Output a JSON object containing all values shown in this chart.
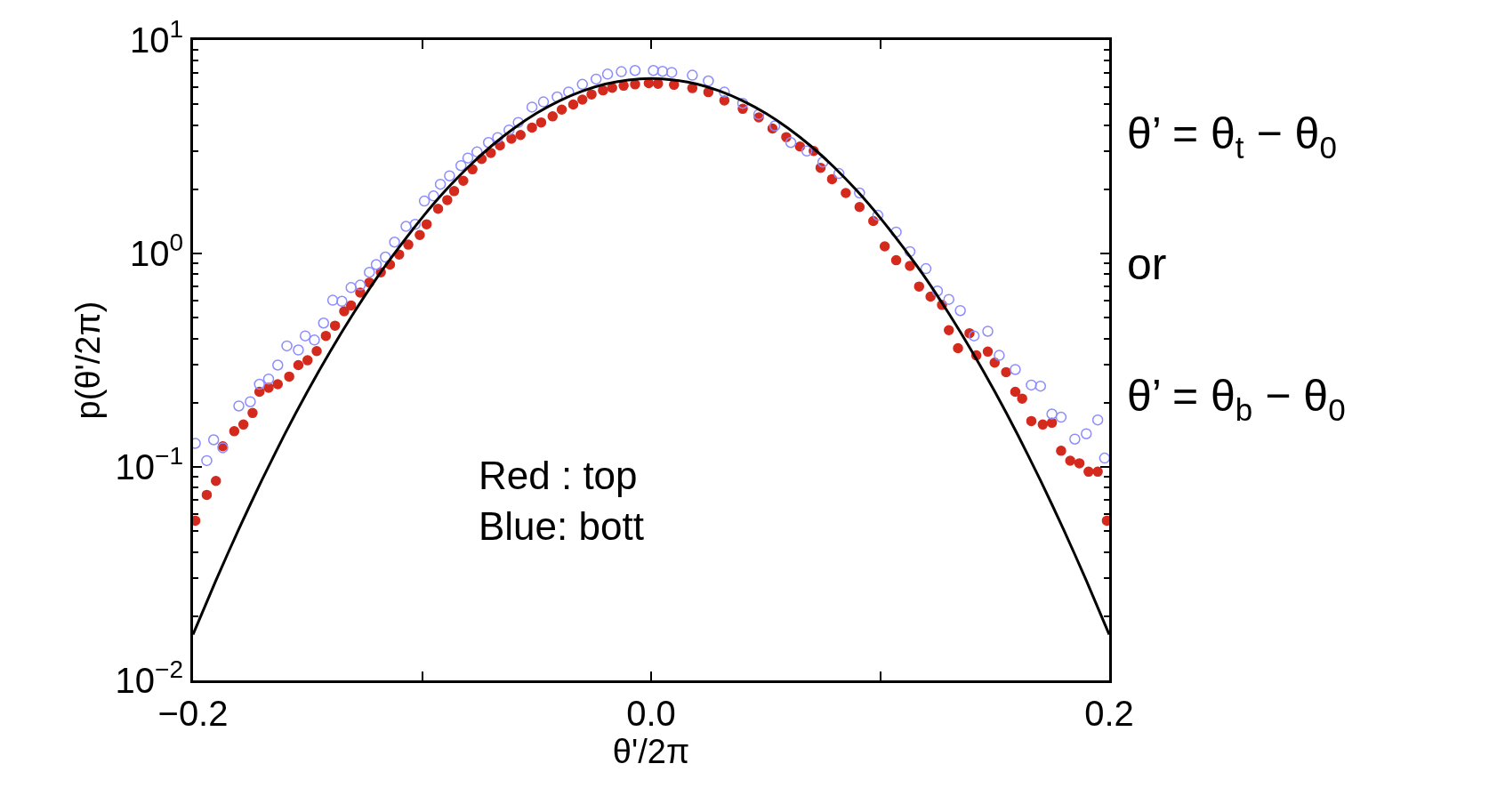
{
  "chart_data": {
    "type": "scatter",
    "xlabel": "θ'/2π",
    "ylabel": "p(θ'/2π)",
    "xlim": [
      -0.2,
      0.2
    ],
    "xticks": [
      {
        "value": -0.2,
        "label": "−0.2"
      },
      {
        "value": -0.1,
        "label": null
      },
      {
        "value": 0,
        "label": "0.0"
      },
      {
        "value": 0.1,
        "label": null
      },
      {
        "value": 0.2,
        "label": "0.2"
      }
    ],
    "ylim": [
      0.01,
      10
    ],
    "log": true,
    "yticks": [
      {
        "value": 0.01,
        "label": "10$^{−2}$"
      },
      {
        "value": 0.1,
        "label": "10$^{−1}$"
      },
      {
        "value": 1,
        "label": "10$^{0}$"
      },
      {
        "value": 10,
        "label": "10$^{1}$"
      }
    ],
    "annotations": [
      "Red : top\nBlue: bott",
      "θ’ = θ$_{t}$ − θ$_{0}$",
      "or",
      "θ’ = θ$_{b}$ − θ$_{0}$"
    ],
    "series": [
      {
        "marker": "circle",
        "color": "#d42a1e",
        "x": [
          -0.199,
          -0.194,
          -0.19,
          -0.187,
          -0.182,
          -0.178,
          -0.174,
          -0.171,
          -0.167,
          -0.163,
          -0.158,
          -0.154,
          -0.15,
          -0.146,
          -0.142,
          -0.138,
          -0.134,
          -0.131,
          -0.127,
          -0.123,
          -0.118,
          -0.114,
          -0.11,
          -0.106,
          -0.101,
          -0.098,
          -0.093,
          -0.089,
          -0.086,
          -0.082,
          -0.078,
          -0.074,
          -0.07,
          -0.066,
          -0.061,
          -0.057,
          -0.052,
          -0.048,
          -0.043,
          -0.039,
          -0.034,
          -0.03,
          -0.026,
          -0.021,
          -0.017,
          -0.012,
          -0.007,
          -0.001,
          0.003,
          0.01,
          0.018,
          0.025,
          0.032,
          0.04,
          0.047,
          0.053,
          0.059,
          0.065,
          0.071,
          0.074,
          0.079,
          0.085,
          0.091,
          0.097,
          0.102,
          0.107,
          0.113,
          0.117,
          0.122,
          0.127,
          0.13,
          0.134,
          0.139,
          0.142,
          0.147,
          0.15,
          0.155,
          0.159,
          0.162,
          0.166,
          0.171,
          0.175,
          0.179,
          0.183,
          0.187,
          0.191,
          0.195,
          0.199
        ],
        "values": [
          0.056,
          0.074,
          0.086,
          0.125,
          0.147,
          0.158,
          0.179,
          0.225,
          0.235,
          0.244,
          0.265,
          0.3,
          0.316,
          0.349,
          0.411,
          0.459,
          0.536,
          0.571,
          0.656,
          0.731,
          0.816,
          0.887,
          0.989,
          1.1,
          1.22,
          1.37,
          1.62,
          1.78,
          1.96,
          2.19,
          2.48,
          2.77,
          2.96,
          3.21,
          3.45,
          3.59,
          3.89,
          4.11,
          4.39,
          4.72,
          4.99,
          5.26,
          5.56,
          5.81,
          5.97,
          6.11,
          6.2,
          6.28,
          6.24,
          6.17,
          5.95,
          5.7,
          5.21,
          4.76,
          4.34,
          3.85,
          3.51,
          3.17,
          3.02,
          2.52,
          2.23,
          1.92,
          1.65,
          1.42,
          1.08,
          0.93,
          0.875,
          0.7,
          0.628,
          0.574,
          0.437,
          0.36,
          0.423,
          0.333,
          0.347,
          0.308,
          0.278,
          0.225,
          0.209,
          0.164,
          0.158,
          0.161,
          0.119,
          0.107,
          0.104,
          0.095,
          0.095,
          0.056
        ]
      },
      {
        "marker": "circle-open",
        "color": "#8c8cff",
        "x": [
          -0.199,
          -0.194,
          -0.191,
          -0.187,
          -0.18,
          -0.175,
          -0.171,
          -0.167,
          -0.163,
          -0.159,
          -0.154,
          -0.151,
          -0.147,
          -0.143,
          -0.139,
          -0.135,
          -0.131,
          -0.127,
          -0.123,
          -0.12,
          -0.116,
          -0.112,
          -0.107,
          -0.103,
          -0.099,
          -0.095,
          -0.092,
          -0.088,
          -0.083,
          -0.08,
          -0.076,
          -0.071,
          -0.067,
          -0.062,
          -0.058,
          -0.052,
          -0.047,
          -0.041,
          -0.036,
          -0.03,
          -0.024,
          -0.019,
          -0.013,
          -0.007,
          0.001,
          0.005,
          0.009,
          0.018,
          0.025,
          0.032,
          0.04,
          0.047,
          0.054,
          0.061,
          0.068,
          0.075,
          0.082,
          0.091,
          0.099,
          0.107,
          0.113,
          0.12,
          0.125,
          0.13,
          0.135,
          0.141,
          0.147,
          0.152,
          0.159,
          0.166,
          0.17,
          0.175,
          0.179,
          0.185,
          0.19,
          0.195,
          0.198
        ],
        "values": [
          0.129,
          0.107,
          0.134,
          0.123,
          0.193,
          0.202,
          0.244,
          0.258,
          0.3,
          0.369,
          0.353,
          0.411,
          0.393,
          0.472,
          0.604,
          0.597,
          0.692,
          0.711,
          0.816,
          0.887,
          0.962,
          1.13,
          1.34,
          1.37,
          1.76,
          1.86,
          2.11,
          2.31,
          2.58,
          2.8,
          2.99,
          3.31,
          3.49,
          3.79,
          4.11,
          4.85,
          5.13,
          5.41,
          5.71,
          6.2,
          6.56,
          6.92,
          7.11,
          7.2,
          7.2,
          7.13,
          7.05,
          6.84,
          6.43,
          5.7,
          5.05,
          4.48,
          3.96,
          3.31,
          3.02,
          2.68,
          2.37,
          1.92,
          1.51,
          1.26,
          1.02,
          0.849,
          0.667,
          0.609,
          0.54,
          0.411,
          0.432,
          0.333,
          0.286,
          0.242,
          0.239,
          0.177,
          0.171,
          0.135,
          0.143,
          0.166,
          0.11
        ]
      },
      {
        "type": "line",
        "marker": "none",
        "line_style": "solid",
        "color": "#000000",
        "x": [
          -0.2,
          -0.19,
          -0.18,
          -0.17,
          -0.16,
          -0.15,
          -0.14,
          -0.13,
          -0.12,
          -0.11,
          -0.1,
          -0.09,
          -0.08,
          -0.07,
          -0.06,
          -0.05,
          -0.04,
          -0.03,
          -0.02,
          -0.01,
          0,
          0.01,
          0.02,
          0.03,
          0.04,
          0.05,
          0.06,
          0.07,
          0.08,
          0.09,
          0.1,
          0.11,
          0.12,
          0.13,
          0.14,
          0.15,
          0.16,
          0.17,
          0.18,
          0.19,
          0.2
        ],
        "values": [
          0.0164,
          0.0294,
          0.0512,
          0.0865,
          0.142,
          0.226,
          0.349,
          0.523,
          0.762,
          1.07,
          1.47,
          1.96,
          2.53,
          3.17,
          3.85,
          4.54,
          5.19,
          5.77,
          6.22,
          6.5,
          6.6,
          6.5,
          6.22,
          5.77,
          5.19,
          4.54,
          3.85,
          3.17,
          2.53,
          1.96,
          1.47,
          1.07,
          0.762,
          0.523,
          0.349,
          0.226,
          0.142,
          0.0865,
          0.0512,
          0.0294,
          0.0164
        ]
      }
    ]
  }
}
